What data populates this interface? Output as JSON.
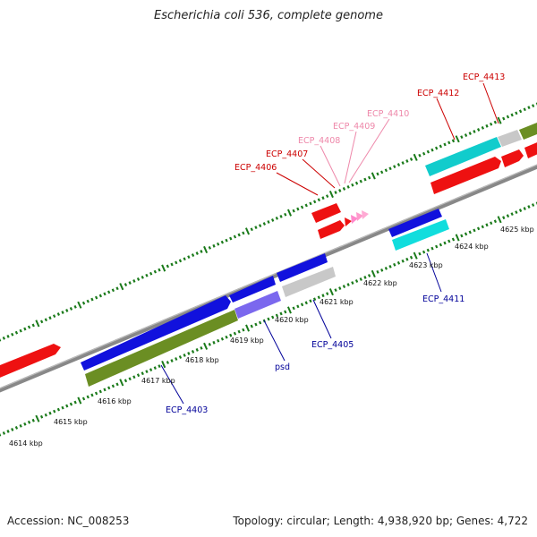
{
  "title": "Escherichia coli 536, complete genome",
  "footer": {
    "accession": "Accession: NC_008253",
    "summary": "Topology: circular; Length: 4,938,920 bp; Genes: 4,722"
  },
  "colors": {
    "cds_red": "#ee1111",
    "cds_blue": "#1111dd",
    "cds_olive": "#6b8e23",
    "cds_cyan": "#11dddd",
    "cds_gray": "#c8c8c8",
    "cds_purple": "#7b68ee",
    "cds_pink": "#ff88cc",
    "backbone": "#888888",
    "tick": "#1a7a1a",
    "label_dark_red": "#cc0000",
    "label_pink": "#ee88aa",
    "label_navy": "#000099"
  },
  "tick_labels": [
    "4614 kbp",
    "4615 kbp",
    "4616 kbp",
    "4617 kbp",
    "4618 kbp",
    "4619 kbp",
    "4620 kbp",
    "4621 kbp",
    "4622 kbp",
    "4623 kbp",
    "4624 kbp",
    "4625 kbp"
  ],
  "gene_labels": {
    "ecp_4403": "ECP_4403",
    "psd": "psd",
    "ecp_4405": "ECP_4405",
    "ecp_4406": "ECP_4406",
    "ecp_4407": "ECP_4407",
    "ecp_4408": "ECP_4408",
    "ecp_4409": "ECP_4409",
    "ecp_4410": "ECP_4410",
    "ecp_4411": "ECP_4411",
    "ecp_4412": "ECP_4412",
    "ecp_4413": "ECP_4413"
  }
}
